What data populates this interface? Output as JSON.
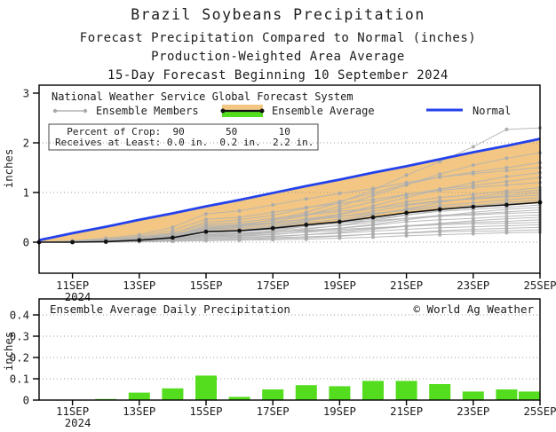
{
  "titles": {
    "line1": "Brazil Soybeans Precipitation",
    "line2": "Forecast Precipitation Compared to Normal (inches)",
    "line3": "Production-Weighted Area Average",
    "line4": "15-Day Forecast Beginning 10 September 2024"
  },
  "top_chart": {
    "legend_title": "National Weather Service Global Forecast System",
    "legend": {
      "members_label": "Ensemble Members",
      "average_label": "Ensemble Average",
      "normal_label": "Normal"
    },
    "crop_table": {
      "row1": "  Percent of Crop:  90       50       10",
      "row2": "Receives at Least: 0.0 in.  0.2 in.  2.2 in.",
      "percent_of_crop": [
        "90",
        "50",
        "10"
      ],
      "receives_at_least": [
        "0.0 in.",
        "0.2 in.",
        "2.2 in."
      ]
    },
    "ylabel": "inches"
  },
  "bottom_chart": {
    "title": "Ensemble Average Daily Precipitation",
    "credit": "© World Ag Weather",
    "ylabel": "inches"
  },
  "x_axis": {
    "tick_labels": [
      "11SEP",
      "13SEP",
      "15SEP",
      "17SEP",
      "19SEP",
      "21SEP",
      "23SEP",
      "25SEP"
    ],
    "tick_days": [
      1,
      3,
      5,
      7,
      9,
      11,
      13,
      15
    ],
    "year": "2024"
  },
  "colors": {
    "orange": "#F3C783",
    "green": "#54DC1E",
    "blue": "#2442EC",
    "member_gray": "#B3B3B3",
    "member_dot": "#ABABAB",
    "black": "#121212",
    "grid_gray": "#9A9A9A"
  },
  "chart_data": [
    {
      "type": "line",
      "title": "Forecast cumulative precipitation compared to normal",
      "x": [
        "10SEP",
        "11SEP",
        "12SEP",
        "13SEP",
        "14SEP",
        "15SEP",
        "16SEP",
        "17SEP",
        "18SEP",
        "19SEP",
        "20SEP",
        "21SEP",
        "22SEP",
        "23SEP",
        "24SEP",
        "25SEP"
      ],
      "ylabel": "inches",
      "ylim": [
        -0.6,
        3.16
      ],
      "yticks": [
        0,
        1,
        2,
        3
      ],
      "grid": "dotted horizontal at 0,1,2",
      "legend_position": "top-left inside",
      "normal": [
        0.04,
        0.18,
        0.31,
        0.45,
        0.58,
        0.72,
        0.85,
        0.99,
        1.13,
        1.26,
        1.4,
        1.53,
        1.67,
        1.81,
        1.94,
        2.08
      ],
      "ensemble_average": [
        0,
        0,
        0.01,
        0.04,
        0.09,
        0.21,
        0.23,
        0.28,
        0.35,
        0.41,
        0.5,
        0.59,
        0.66,
        0.71,
        0.75,
        0.8
      ],
      "ensemble_members": [
        [
          0,
          0,
          0.01,
          0.05,
          0.12,
          0.3,
          0.34,
          0.45,
          0.6,
          0.8,
          1.05,
          1.35,
          1.62,
          1.92,
          2.27,
          2.3
        ],
        [
          0,
          0,
          0.02,
          0.05,
          0.13,
          0.27,
          0.31,
          0.4,
          0.54,
          0.72,
          0.94,
          1.15,
          1.37,
          1.55,
          1.69,
          1.8
        ],
        [
          0,
          0.02,
          0.03,
          0.08,
          0.18,
          0.4,
          0.45,
          0.54,
          0.69,
          0.82,
          0.99,
          1.17,
          1.31,
          1.41,
          1.5,
          1.6
        ],
        [
          0,
          0.03,
          0.08,
          0.15,
          0.3,
          0.57,
          0.63,
          0.75,
          0.87,
          0.98,
          1.08,
          1.2,
          1.31,
          1.38,
          1.44,
          1.5
        ],
        [
          0,
          0,
          0.01,
          0.04,
          0.1,
          0.21,
          0.24,
          0.31,
          0.42,
          0.56,
          0.73,
          0.9,
          1.06,
          1.2,
          1.32,
          1.4
        ],
        [
          0,
          0.01,
          0.03,
          0.07,
          0.14,
          0.33,
          0.36,
          0.44,
          0.56,
          0.66,
          0.81,
          0.95,
          1.07,
          1.14,
          1.22,
          1.3
        ],
        [
          0,
          0.02,
          0.06,
          0.12,
          0.24,
          0.46,
          0.5,
          0.6,
          0.7,
          0.78,
          0.86,
          0.96,
          1.04,
          1.1,
          1.15,
          1.2
        ],
        [
          0,
          0.01,
          0.02,
          0.06,
          0.12,
          0.28,
          0.32,
          0.37,
          0.47,
          0.56,
          0.68,
          0.81,
          0.9,
          0.96,
          1.03,
          1.1
        ],
        [
          0,
          0,
          0.01,
          0.03,
          0.07,
          0.16,
          0.18,
          0.23,
          0.32,
          0.42,
          0.55,
          0.67,
          0.8,
          0.9,
          0.99,
          1.05
        ],
        [
          0,
          0.01,
          0.02,
          0.05,
          0.11,
          0.26,
          0.29,
          0.34,
          0.44,
          0.51,
          0.62,
          0.74,
          0.82,
          0.88,
          0.94,
          1.0
        ],
        [
          0,
          0.02,
          0.05,
          0.1,
          0.19,
          0.36,
          0.4,
          0.48,
          0.55,
          0.62,
          0.68,
          0.76,
          0.83,
          0.87,
          0.91,
          0.95
        ],
        [
          0,
          0.01,
          0.02,
          0.05,
          0.1,
          0.24,
          0.26,
          0.31,
          0.39,
          0.46,
          0.56,
          0.66,
          0.74,
          0.79,
          0.85,
          0.9
        ],
        [
          0,
          0,
          0.01,
          0.03,
          0.06,
          0.13,
          0.14,
          0.19,
          0.26,
          0.34,
          0.44,
          0.54,
          0.65,
          0.73,
          0.8,
          0.85
        ],
        [
          0,
          0.02,
          0.04,
          0.08,
          0.16,
          0.3,
          0.34,
          0.4,
          0.46,
          0.52,
          0.58,
          0.64,
          0.7,
          0.74,
          0.77,
          0.8
        ],
        [
          0,
          0.01,
          0.02,
          0.04,
          0.08,
          0.2,
          0.22,
          0.26,
          0.32,
          0.38,
          0.47,
          0.55,
          0.62,
          0.66,
          0.7,
          0.75
        ],
        [
          0,
          0,
          0.01,
          0.02,
          0.05,
          0.11,
          0.12,
          0.15,
          0.21,
          0.28,
          0.36,
          0.45,
          0.53,
          0.6,
          0.66,
          0.7
        ],
        [
          0,
          0.01,
          0.01,
          0.03,
          0.07,
          0.17,
          0.19,
          0.22,
          0.28,
          0.33,
          0.4,
          0.48,
          0.54,
          0.57,
          0.61,
          0.65
        ],
        [
          0,
          0.01,
          0.03,
          0.06,
          0.12,
          0.23,
          0.25,
          0.3,
          0.35,
          0.39,
          0.43,
          0.48,
          0.52,
          0.55,
          0.58,
          0.6
        ],
        [
          0,
          0.01,
          0.01,
          0.03,
          0.06,
          0.14,
          0.16,
          0.19,
          0.24,
          0.28,
          0.34,
          0.41,
          0.45,
          0.48,
          0.52,
          0.55
        ],
        [
          0,
          0,
          0.01,
          0.02,
          0.04,
          0.08,
          0.09,
          0.11,
          0.15,
          0.2,
          0.26,
          0.32,
          0.38,
          0.43,
          0.47,
          0.5
        ],
        [
          0,
          0,
          0.01,
          0.02,
          0.05,
          0.12,
          0.13,
          0.16,
          0.2,
          0.23,
          0.28,
          0.33,
          0.37,
          0.4,
          0.42,
          0.45
        ],
        [
          0,
          0.01,
          0.02,
          0.04,
          0.08,
          0.15,
          0.17,
          0.2,
          0.23,
          0.26,
          0.29,
          0.32,
          0.35,
          0.37,
          0.38,
          0.4
        ],
        [
          0,
          0,
          0.01,
          0.02,
          0.04,
          0.09,
          0.1,
          0.12,
          0.15,
          0.18,
          0.22,
          0.26,
          0.29,
          0.31,
          0.33,
          0.35
        ],
        [
          0,
          0,
          0,
          0.01,
          0.02,
          0.05,
          0.05,
          0.07,
          0.09,
          0.12,
          0.16,
          0.19,
          0.23,
          0.26,
          0.28,
          0.3
        ],
        [
          0,
          0,
          0.01,
          0.01,
          0.03,
          0.07,
          0.07,
          0.09,
          0.11,
          0.13,
          0.16,
          0.18,
          0.21,
          0.22,
          0.23,
          0.25
        ],
        [
          0,
          0,
          0,
          0.01,
          0.02,
          0.03,
          0.04,
          0.05,
          0.06,
          0.08,
          0.1,
          0.13,
          0.15,
          0.17,
          0.19,
          0.2
        ]
      ]
    },
    {
      "type": "bar",
      "title": "Ensemble Average Daily Precipitation",
      "categories": [
        "11SEP",
        "12SEP",
        "13SEP",
        "14SEP",
        "15SEP",
        "16SEP",
        "17SEP",
        "18SEP",
        "19SEP",
        "20SEP",
        "21SEP",
        "22SEP",
        "23SEP",
        "24SEP",
        "25SEP"
      ],
      "values": [
        0,
        0.005,
        0.035,
        0.055,
        0.115,
        0.015,
        0.05,
        0.07,
        0.065,
        0.09,
        0.09,
        0.075,
        0.04,
        0.05,
        0.04
      ],
      "ylabel": "inches",
      "ylim": [
        0,
        0.475
      ],
      "yticks": [
        0,
        0.1,
        0.2,
        0.3,
        0.4
      ],
      "grid": "dotted horizontal at 0.1,0.2,0.3,0.4"
    }
  ]
}
